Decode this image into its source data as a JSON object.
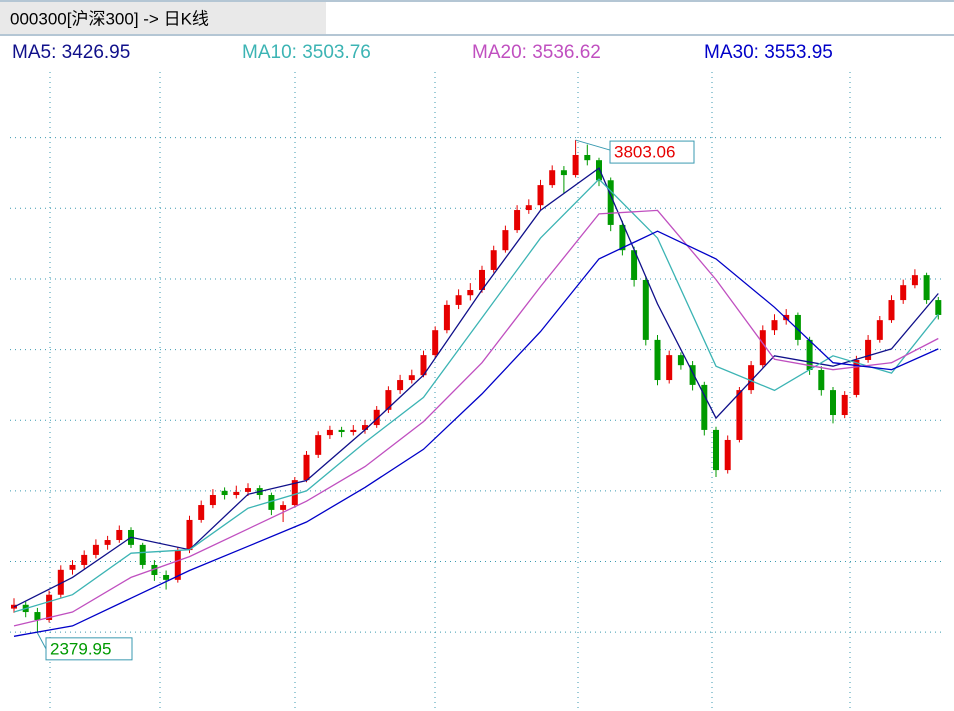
{
  "chart_data": {
    "type": "candlestick",
    "title": "000300[沪深300] -> 日K线",
    "ylim": [
      2186,
      3991
    ],
    "yticks": [
      3810,
      3606,
      3402,
      3198,
      2994,
      2790,
      2586,
      2382
    ],
    "grid": true,
    "up_color": "#e60000",
    "down_color": "#009a00",
    "ohlc": [
      [
        2450,
        2480,
        2438,
        2461
      ],
      [
        2461,
        2470,
        2425,
        2440
      ],
      [
        2440,
        2452,
        2379.95,
        2417
      ],
      [
        2417,
        2502,
        2410,
        2490
      ],
      [
        2490,
        2575,
        2482,
        2562
      ],
      [
        2562,
        2590,
        2548,
        2576
      ],
      [
        2576,
        2618,
        2565,
        2605
      ],
      [
        2605,
        2650,
        2595,
        2634
      ],
      [
        2634,
        2660,
        2620,
        2648
      ],
      [
        2648,
        2690,
        2640,
        2677
      ],
      [
        2677,
        2685,
        2625,
        2634
      ],
      [
        2634,
        2640,
        2565,
        2576
      ],
      [
        2576,
        2590,
        2530,
        2547
      ],
      [
        2547,
        2560,
        2505,
        2533
      ],
      [
        2533,
        2628,
        2525,
        2619
      ],
      [
        2619,
        2718,
        2610,
        2706
      ],
      [
        2706,
        2762,
        2698,
        2749
      ],
      [
        2749,
        2795,
        2740,
        2778
      ],
      [
        2790,
        2800,
        2765,
        2778
      ],
      [
        2778,
        2805,
        2768,
        2787
      ],
      [
        2787,
        2812,
        2775,
        2798
      ],
      [
        2798,
        2806,
        2765,
        2778
      ],
      [
        2778,
        2785,
        2720,
        2735
      ],
      [
        2735,
        2760,
        2700,
        2749
      ],
      [
        2749,
        2830,
        2742,
        2821
      ],
      [
        2821,
        2905,
        2815,
        2894
      ],
      [
        2894,
        2962,
        2885,
        2951
      ],
      [
        2951,
        2978,
        2940,
        2966
      ],
      [
        2966,
        2975,
        2945,
        2960
      ],
      [
        2960,
        2980,
        2950,
        2966
      ],
      [
        2966,
        2995,
        2955,
        2980
      ],
      [
        2980,
        3035,
        2972,
        3024
      ],
      [
        3024,
        3092,
        3015,
        3081
      ],
      [
        3081,
        3125,
        3070,
        3110
      ],
      [
        3110,
        3140,
        3100,
        3124
      ],
      [
        3124,
        3195,
        3118,
        3182
      ],
      [
        3182,
        3265,
        3175,
        3254
      ],
      [
        3254,
        3340,
        3245,
        3327
      ],
      [
        3327,
        3372,
        3315,
        3355
      ],
      [
        3355,
        3390,
        3340,
        3370
      ],
      [
        3370,
        3440,
        3362,
        3428
      ],
      [
        3428,
        3498,
        3420,
        3485
      ],
      [
        3485,
        3556,
        3478,
        3543
      ],
      [
        3543,
        3615,
        3535,
        3601
      ],
      [
        3601,
        3632,
        3590,
        3615
      ],
      [
        3615,
        3688,
        3600,
        3673
      ],
      [
        3673,
        3730,
        3665,
        3716
      ],
      [
        3716,
        3728,
        3650,
        3702
      ],
      [
        3702,
        3803.06,
        3695,
        3760
      ],
      [
        3760,
        3790,
        3730,
        3745
      ],
      [
        3745,
        3752,
        3670,
        3687
      ],
      [
        3687,
        3695,
        3540,
        3558
      ],
      [
        3558,
        3570,
        3470,
        3485
      ],
      [
        3485,
        3495,
        3380,
        3399
      ],
      [
        3399,
        3410,
        3210,
        3226
      ],
      [
        3226,
        3240,
        3095,
        3110
      ],
      [
        3110,
        3195,
        3100,
        3182
      ],
      [
        3182,
        3190,
        3140,
        3153
      ],
      [
        3153,
        3165,
        3080,
        3096
      ],
      [
        3096,
        3105,
        2950,
        2966
      ],
      [
        2966,
        2975,
        2830,
        2850
      ],
      [
        2850,
        2950,
        2840,
        2937
      ],
      [
        2937,
        3090,
        2930,
        3081
      ],
      [
        3081,
        3165,
        3070,
        3153
      ],
      [
        3153,
        3268,
        3145,
        3254
      ],
      [
        3254,
        3300,
        3240,
        3283
      ],
      [
        3283,
        3315,
        3270,
        3298
      ],
      [
        3298,
        3305,
        3210,
        3226
      ],
      [
        3226,
        3235,
        3125,
        3139
      ],
      [
        3139,
        3150,
        3065,
        3081
      ],
      [
        3081,
        3090,
        2985,
        3009
      ],
      [
        3009,
        3078,
        3000,
        3067
      ],
      [
        3067,
        3180,
        3060,
        3168
      ],
      [
        3168,
        3240,
        3160,
        3226
      ],
      [
        3226,
        3295,
        3218,
        3283
      ],
      [
        3283,
        3355,
        3275,
        3341
      ],
      [
        3341,
        3400,
        3330,
        3384
      ],
      [
        3384,
        3430,
        3375,
        3413
      ],
      [
        3413,
        3420,
        3330,
        3341
      ],
      [
        3341,
        3350,
        3285,
        3298
      ]
    ],
    "ma_lines": [
      {
        "name": "MA5: 3426.95",
        "color": "#10108a",
        "x": [
          0,
          5,
          10,
          15,
          20,
          25,
          30,
          35,
          40,
          45,
          50,
          55,
          60,
          65,
          70,
          75,
          79
        ],
        "values": [
          2455,
          2540,
          2656,
          2620,
          2780,
          2820,
          2966,
          3124,
          3370,
          3600,
          3722,
          3330,
          3000,
          3180,
          3150,
          3200,
          3360
        ]
      },
      {
        "name": "MA10: 3503.76",
        "color": "#3cb4b4",
        "x": [
          0,
          5,
          10,
          15,
          20,
          25,
          30,
          35,
          40,
          45,
          50,
          55,
          60,
          65,
          70,
          75,
          79
        ],
        "values": [
          2440,
          2490,
          2610,
          2620,
          2740,
          2790,
          2930,
          3060,
          3290,
          3520,
          3690,
          3520,
          3150,
          3080,
          3180,
          3130,
          3300
        ]
      },
      {
        "name": "MA20: 3536.62",
        "color": "#c050c0",
        "x": [
          0,
          5,
          10,
          15,
          20,
          25,
          30,
          35,
          40,
          45,
          50,
          55,
          60,
          65,
          70,
          75,
          79
        ],
        "values": [
          2400,
          2440,
          2540,
          2600,
          2680,
          2760,
          2860,
          2990,
          3160,
          3380,
          3590,
          3600,
          3400,
          3170,
          3140,
          3160,
          3230
        ]
      },
      {
        "name": "MA30: 3553.95",
        "color": "#0000c8",
        "x": [
          0,
          5,
          10,
          15,
          20,
          25,
          30,
          35,
          40,
          45,
          50,
          55,
          60,
          65,
          70,
          75,
          79
        ],
        "values": [
          2370,
          2400,
          2480,
          2560,
          2630,
          2700,
          2800,
          2910,
          3070,
          3250,
          3460,
          3540,
          3460,
          3320,
          3160,
          3140,
          3200
        ]
      }
    ],
    "high_label": 3803.06,
    "low_label": 2379.95
  }
}
